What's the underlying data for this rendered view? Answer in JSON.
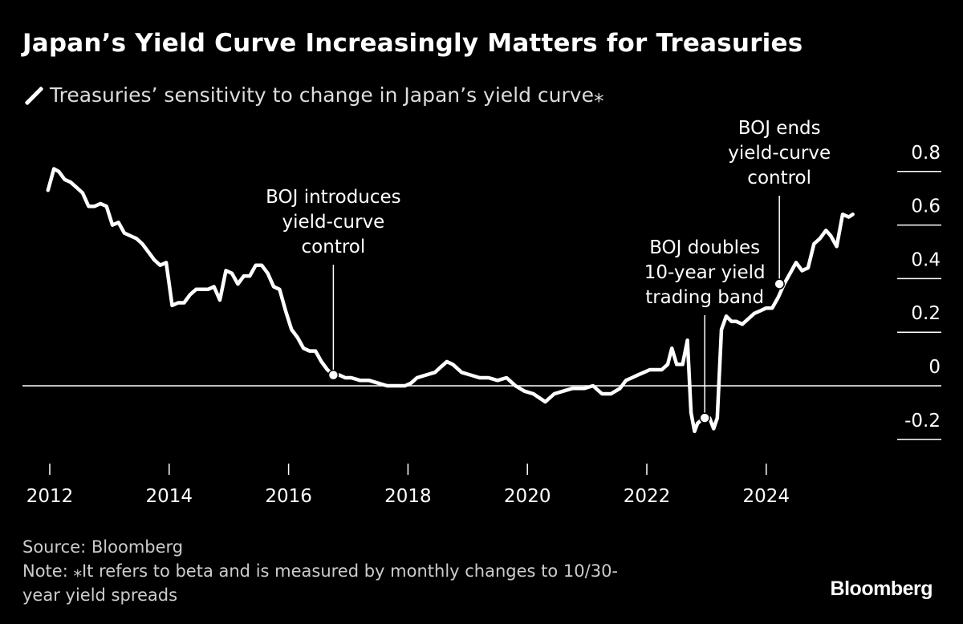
{
  "header": {
    "title": "Japan’s Yield Curve Increasingly Matters for Treasuries",
    "legend_label": "Treasuries’ sensitivity to change in Japan’s yield curve⁎"
  },
  "footer": {
    "source": "Source: Bloomberg",
    "note_line1": "Note: ⁎It refers to beta and is measured by monthly changes to 10/30-",
    "note_line2": "year yield spreads",
    "brand": "Bloomberg"
  },
  "colors": {
    "background": "#000000",
    "line": "#ffffff",
    "text": "#ffffff",
    "muted": "#cccccc"
  },
  "chart_data": {
    "type": "line",
    "title": "Japan’s Yield Curve Increasingly Matters for Treasuries",
    "xlabel": "",
    "ylabel": "",
    "xlim": [
      2012,
      2025.7
    ],
    "ylim": [
      -0.2,
      0.8
    ],
    "x_ticks": [
      2012,
      2014,
      2016,
      2018,
      2020,
      2022,
      2024
    ],
    "x_tick_labels": [
      "2012",
      "2014",
      "2016",
      "2018",
      "2020",
      "2022",
      "2024"
    ],
    "y_ticks": [
      0.8,
      0.6,
      0.4,
      0.2,
      0,
      -0.2
    ],
    "y_tick_labels": [
      "0.8",
      "0.6",
      "0.4",
      "0.2",
      "0",
      "-0.2"
    ],
    "series": [
      {
        "name": "Treasuries’ sensitivity to change in Japan’s yield curve",
        "points": [
          [
            2011.97,
            0.73
          ],
          [
            2012.07,
            0.81
          ],
          [
            2012.15,
            0.8
          ],
          [
            2012.25,
            0.77
          ],
          [
            2012.35,
            0.76
          ],
          [
            2012.45,
            0.74
          ],
          [
            2012.55,
            0.72
          ],
          [
            2012.65,
            0.67
          ],
          [
            2012.75,
            0.67
          ],
          [
            2012.85,
            0.68
          ],
          [
            2012.95,
            0.67
          ],
          [
            2013.05,
            0.6
          ],
          [
            2013.15,
            0.61
          ],
          [
            2013.25,
            0.57
          ],
          [
            2013.35,
            0.56
          ],
          [
            2013.45,
            0.55
          ],
          [
            2013.55,
            0.53
          ],
          [
            2013.65,
            0.5
          ],
          [
            2013.75,
            0.47
          ],
          [
            2013.85,
            0.45
          ],
          [
            2013.95,
            0.46
          ],
          [
            2014.05,
            0.3
          ],
          [
            2014.15,
            0.31
          ],
          [
            2014.25,
            0.31
          ],
          [
            2014.35,
            0.34
          ],
          [
            2014.45,
            0.36
          ],
          [
            2014.55,
            0.36
          ],
          [
            2014.65,
            0.36
          ],
          [
            2014.75,
            0.37
          ],
          [
            2014.85,
            0.32
          ],
          [
            2014.95,
            0.43
          ],
          [
            2015.05,
            0.42
          ],
          [
            2015.15,
            0.38
          ],
          [
            2015.25,
            0.41
          ],
          [
            2015.35,
            0.41
          ],
          [
            2015.45,
            0.45
          ],
          [
            2015.55,
            0.45
          ],
          [
            2015.65,
            0.42
          ],
          [
            2015.75,
            0.37
          ],
          [
            2015.85,
            0.36
          ],
          [
            2015.95,
            0.28
          ],
          [
            2016.05,
            0.21
          ],
          [
            2016.15,
            0.18
          ],
          [
            2016.25,
            0.14
          ],
          [
            2016.35,
            0.13
          ],
          [
            2016.45,
            0.13
          ],
          [
            2016.55,
            0.09
          ],
          [
            2016.65,
            0.06
          ],
          [
            2016.75,
            0.04
          ],
          [
            2016.85,
            0.04
          ],
          [
            2016.95,
            0.03
          ],
          [
            2017.05,
            0.03
          ],
          [
            2017.2,
            0.02
          ],
          [
            2017.35,
            0.02
          ],
          [
            2017.5,
            0.01
          ],
          [
            2017.65,
            0.0
          ],
          [
            2017.8,
            0.0
          ],
          [
            2017.95,
            0.0
          ],
          [
            2018.05,
            0.01
          ],
          [
            2018.15,
            0.03
          ],
          [
            2018.3,
            0.04
          ],
          [
            2018.45,
            0.05
          ],
          [
            2018.55,
            0.07
          ],
          [
            2018.65,
            0.09
          ],
          [
            2018.75,
            0.08
          ],
          [
            2018.9,
            0.05
          ],
          [
            2019.05,
            0.04
          ],
          [
            2019.2,
            0.03
          ],
          [
            2019.35,
            0.03
          ],
          [
            2019.5,
            0.02
          ],
          [
            2019.65,
            0.03
          ],
          [
            2019.8,
            0.0
          ],
          [
            2019.95,
            -0.02
          ],
          [
            2020.1,
            -0.03
          ],
          [
            2020.3,
            -0.06
          ],
          [
            2020.45,
            -0.03
          ],
          [
            2020.6,
            -0.02
          ],
          [
            2020.75,
            -0.01
          ],
          [
            2020.95,
            -0.01
          ],
          [
            2021.1,
            0.0
          ],
          [
            2021.25,
            -0.03
          ],
          [
            2021.4,
            -0.03
          ],
          [
            2021.55,
            -0.01
          ],
          [
            2021.65,
            0.02
          ],
          [
            2021.75,
            0.03
          ],
          [
            2021.85,
            0.04
          ],
          [
            2021.95,
            0.05
          ],
          [
            2022.05,
            0.06
          ],
          [
            2022.15,
            0.06
          ],
          [
            2022.25,
            0.06
          ],
          [
            2022.35,
            0.08
          ],
          [
            2022.42,
            0.14
          ],
          [
            2022.5,
            0.08
          ],
          [
            2022.6,
            0.08
          ],
          [
            2022.68,
            0.17
          ],
          [
            2022.74,
            -0.1
          ],
          [
            2022.8,
            -0.17
          ],
          [
            2022.85,
            -0.14
          ],
          [
            2022.9,
            -0.13
          ],
          [
            2023.0,
            -0.12
          ],
          [
            2023.05,
            -0.12
          ],
          [
            2023.12,
            -0.16
          ],
          [
            2023.18,
            -0.12
          ],
          [
            2023.25,
            0.21
          ],
          [
            2023.33,
            0.26
          ],
          [
            2023.42,
            0.24
          ],
          [
            2023.5,
            0.24
          ],
          [
            2023.6,
            0.23
          ],
          [
            2023.7,
            0.25
          ],
          [
            2023.8,
            0.27
          ],
          [
            2023.9,
            0.28
          ],
          [
            2024.0,
            0.29
          ],
          [
            2024.1,
            0.29
          ],
          [
            2024.2,
            0.33
          ],
          [
            2024.3,
            0.38
          ],
          [
            2024.4,
            0.42
          ],
          [
            2024.5,
            0.46
          ],
          [
            2024.6,
            0.43
          ],
          [
            2024.7,
            0.44
          ],
          [
            2024.8,
            0.53
          ],
          [
            2024.9,
            0.55
          ],
          [
            2025.0,
            0.58
          ],
          [
            2025.08,
            0.56
          ],
          [
            2025.18,
            0.52
          ],
          [
            2025.28,
            0.64
          ],
          [
            2025.38,
            0.63
          ],
          [
            2025.45,
            0.64
          ]
        ]
      }
    ],
    "annotations": [
      {
        "lines": [
          "BOJ introduces",
          "yield-curve",
          "control"
        ],
        "x": 2016.75,
        "y": 0.04
      },
      {
        "lines": [
          "BOJ doubles",
          "10-year yield",
          "trading band"
        ],
        "x": 2022.97,
        "y": -0.12
      },
      {
        "lines": [
          "BOJ ends",
          "yield-curve",
          "control"
        ],
        "x": 2024.22,
        "y": 0.38
      }
    ]
  }
}
